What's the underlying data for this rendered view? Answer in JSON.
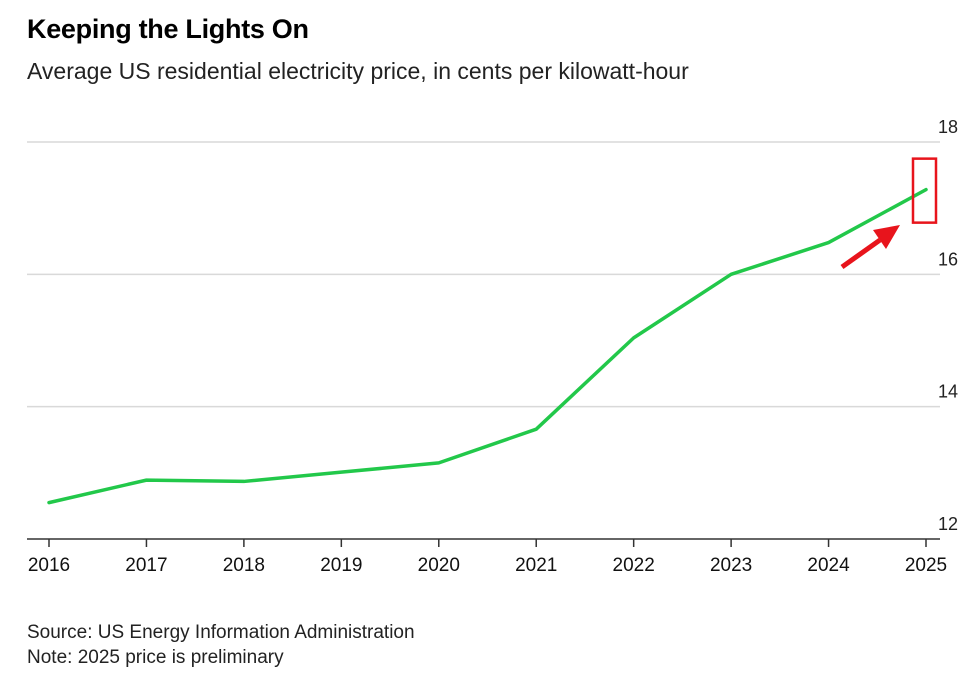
{
  "title": "Keeping the Lights On",
  "subtitle": "Average US residential electricity price, in cents per kilowatt-hour",
  "source": "Source: US Energy Information Administration",
  "note": "Note: 2025 price is preliminary",
  "colors": {
    "line": "#22c84a",
    "grid": "#d9d9d9",
    "axis": "#333333",
    "highlight": "#e8141c"
  },
  "chart_data": {
    "type": "line",
    "title": "Keeping the Lights On",
    "subtitle": "Average US residential electricity price, in cents per kilowatt-hour",
    "xlabel": "",
    "ylabel": "",
    "categories": [
      "2016",
      "2017",
      "2018",
      "2019",
      "2020",
      "2021",
      "2022",
      "2023",
      "2024",
      "2025"
    ],
    "series": [
      {
        "name": "Average US residential electricity price",
        "values": [
          12.55,
          12.89,
          12.87,
          13.01,
          13.15,
          13.66,
          15.04,
          16.0,
          16.48,
          17.28
        ]
      }
    ],
    "ylim": [
      12,
      18
    ],
    "yticks": [
      "12",
      "14",
      "16",
      "18"
    ],
    "grid": true,
    "y_axis_side": "right",
    "annotation": {
      "type": "highlight-box-with-arrow",
      "target": "2025",
      "note": "2025 price is preliminary"
    }
  }
}
